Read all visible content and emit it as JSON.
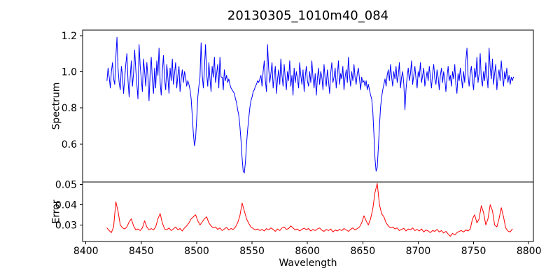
{
  "chart_data": {
    "type": "line",
    "title": "20130305_1010m40_084",
    "xlabel": "Wavelength",
    "grid": false,
    "legend": null,
    "xlim": [
      8397,
      8804
    ],
    "xticks": [
      8400,
      8450,
      8500,
      8550,
      8600,
      8650,
      8700,
      8750,
      8800
    ],
    "subplots": [
      {
        "name": "spectrum",
        "ylabel": "Spectrum",
        "color": "#0000ff",
        "ylim": [
          0.39,
          1.23
        ],
        "yticks": [
          0.6,
          0.8,
          1.0,
          1.2
        ],
        "ytick_labels": [
          "0.6",
          "0.8",
          "1.0",
          "1.2"
        ],
        "x_start": 8419,
        "dx": 1,
        "y": [
          0.95,
          1.02,
          0.97,
          0.91,
          1.0,
          1.05,
          0.96,
          0.93,
          1.08,
          1.19,
          1.02,
          0.94,
          0.9,
          1.03,
          0.98,
          0.88,
          0.96,
          1.04,
          1.1,
          0.95,
          0.86,
          0.97,
          1.06,
          0.92,
          0.99,
          1.12,
          1.01,
          0.93,
          0.85,
          1.15,
          1.03,
          0.96,
          0.89,
          1.07,
          1.0,
          0.92,
          1.05,
          0.97,
          0.84,
          0.99,
          1.08,
          0.95,
          0.88,
          1.02,
          0.91,
          1.06,
          0.98,
          1.13,
          0.94,
          0.87,
          1.0,
          1.09,
          0.96,
          0.9,
          1.04,
          0.97,
          0.88,
          1.02,
          0.95,
          1.07,
          0.93,
          0.99,
          1.05,
          0.91,
          0.98,
          1.03,
          0.89,
          0.96,
          1.01,
          0.94,
          1.0,
          0.97,
          0.92,
          0.95,
          0.93,
          0.9,
          0.85,
          0.76,
          0.66,
          0.59,
          0.63,
          0.74,
          0.86,
          0.92,
          0.97,
          1.16,
          0.98,
          0.91,
          1.02,
          1.15,
          0.99,
          0.92,
          1.05,
          0.96,
          0.89,
          1.03,
          0.97,
          1.08,
          0.94,
          0.99,
          1.04,
          0.91,
          1.08,
          0.97,
          0.97,
          0.9,
          1.01,
          0.95,
          0.98,
          0.94,
          0.96,
          0.93,
          0.91,
          0.9,
          0.89,
          0.88,
          0.85,
          0.83,
          0.79,
          0.76,
          0.7,
          0.62,
          0.52,
          0.45,
          0.44,
          0.5,
          0.6,
          0.68,
          0.74,
          0.8,
          0.84,
          0.86,
          0.89,
          0.9,
          0.92,
          0.93,
          0.95,
          0.94,
          0.96,
          0.98,
          0.92,
          1.0,
          1.06,
          0.95,
          0.89,
          1.15,
          1.02,
          0.94,
          0.99,
          1.05,
          0.91,
          0.97,
          1.03,
          0.88,
          0.96,
          1.01,
          0.93,
          1.07,
          0.98,
          0.92,
          1.04,
          0.96,
          0.9,
          1.0,
          0.95,
          1.06,
          0.92,
          0.98,
          0.87,
          1.02,
          0.94,
          1.0,
          0.96,
          0.91,
          1.05,
          0.98,
          0.93,
          1.01,
          0.89,
          0.97,
          1.03,
          0.95,
          0.92,
          1.0,
          0.94,
          1.06,
          0.97,
          0.91,
          0.99,
          0.87,
          0.96,
          1.02,
          0.93,
          1.0,
          0.97,
          0.9,
          1.04,
          0.96,
          0.92,
          1.01,
          0.95,
          0.88,
          0.99,
          1.05,
          0.94,
          0.97,
          1.02,
          0.91,
          0.98,
          1.06,
          0.93,
          0.99,
          0.96,
          1.03,
          0.9,
          0.97,
          1.01,
          0.94,
          1.08,
          0.98,
          0.92,
          1.0,
          0.95,
          1.04,
          0.97,
          0.93,
          0.99,
          1.02,
          0.96,
          0.9,
          0.97,
          0.94,
          0.95,
          0.92,
          0.95,
          0.9,
          0.93,
          0.9,
          0.87,
          0.85,
          0.78,
          0.66,
          0.52,
          0.45,
          0.47,
          0.58,
          0.7,
          0.8,
          0.86,
          0.9,
          0.93,
          0.96,
          0.92,
          0.98,
          1.01,
          0.95,
          1.04,
          0.97,
          0.92,
          1.0,
          0.96,
          1.03,
          0.94,
          0.98,
          1.05,
          0.91,
          0.97,
          1.0,
          0.93,
          0.79,
          0.9,
          0.97,
          1.02,
          0.95,
          0.99,
          1.06,
          0.93,
          0.98,
          1.03,
          0.96,
          0.91,
          1.0,
          0.97,
          1.05,
          0.94,
          0.98,
          1.02,
          0.92,
          0.96,
          1.0,
          0.95,
          1.03,
          0.97,
          0.91,
          0.99,
          1.04,
          0.96,
          0.93,
          1.01,
          0.97,
          0.9,
          0.98,
          1.02,
          0.94,
          1.0,
          0.96,
          0.89,
          0.97,
          1.03,
          0.95,
          0.98,
          0.92,
          1.0,
          0.96,
          1.04,
          0.93,
          0.88,
          0.99,
          0.95,
          1.02,
          0.97,
          0.91,
          1.0,
          0.94,
          1.06,
          1.13,
          0.98,
          0.92,
          0.99,
          1.03,
          0.95,
          0.9,
          1.02,
          0.97,
          1.08,
          0.94,
          0.99,
          1.1,
          0.96,
          0.92,
          1.0,
          0.95,
          1.05,
          0.98,
          0.91,
          1.13,
          1.02,
          0.96,
          1.07,
          0.93,
          0.99,
          1.04,
          0.9,
          0.97,
          1.01,
          0.95,
          1.06,
          0.98,
          0.92,
          1.0,
          0.96,
          1.02,
          0.94,
          0.98,
          0.93,
          0.97,
          0.95,
          0.97
        ]
      },
      {
        "name": "error",
        "ylabel": "Error",
        "color": "#ff0000",
        "ylim": [
          0.0218,
          0.0512
        ],
        "yticks": [
          0.03,
          0.04,
          0.05
        ],
        "ytick_labels": [
          "0.03",
          "0.04",
          "0.05"
        ],
        "x_start": 8419,
        "dx": 2,
        "y": [
          0.0285,
          0.0272,
          0.0262,
          0.029,
          0.0414,
          0.0368,
          0.03,
          0.0285,
          0.028,
          0.029,
          0.0315,
          0.033,
          0.0295,
          0.0275,
          0.028,
          0.0272,
          0.0285,
          0.032,
          0.029,
          0.0275,
          0.0282,
          0.0275,
          0.029,
          0.033,
          0.0356,
          0.031,
          0.028,
          0.0276,
          0.0285,
          0.0272,
          0.028,
          0.029,
          0.0276,
          0.0282,
          0.027,
          0.0285,
          0.0295,
          0.031,
          0.033,
          0.034,
          0.035,
          0.032,
          0.03,
          0.0315,
          0.033,
          0.034,
          0.031,
          0.0295,
          0.0285,
          0.029,
          0.0278,
          0.0285,
          0.0272,
          0.028,
          0.0288,
          0.0275,
          0.0282,
          0.0278,
          0.029,
          0.031,
          0.0345,
          0.0408,
          0.037,
          0.033,
          0.0308,
          0.029,
          0.0282,
          0.0275,
          0.028,
          0.0272,
          0.0278,
          0.027,
          0.0282,
          0.0275,
          0.0285,
          0.0278,
          0.0268,
          0.028,
          0.0272,
          0.0285,
          0.029,
          0.0278,
          0.0282,
          0.0295,
          0.0285,
          0.0275,
          0.028,
          0.027,
          0.0278,
          0.0284,
          0.0276,
          0.0282,
          0.027,
          0.0278,
          0.0272,
          0.028,
          0.0285,
          0.0274,
          0.0268,
          0.0278,
          0.0272,
          0.028,
          0.0265,
          0.0275,
          0.027,
          0.0278,
          0.0272,
          0.0282,
          0.0275,
          0.0268,
          0.0278,
          0.0285,
          0.0275,
          0.0282,
          0.029,
          0.031,
          0.0345,
          0.032,
          0.03,
          0.033,
          0.038,
          0.046,
          0.0505,
          0.04,
          0.0355,
          0.034,
          0.031,
          0.0295,
          0.0285,
          0.029,
          0.028,
          0.0285,
          0.0272,
          0.0278,
          0.0283,
          0.027,
          0.028,
          0.0275,
          0.0285,
          0.0272,
          0.0278,
          0.027,
          0.028,
          0.0265,
          0.0275,
          0.027,
          0.0262,
          0.0272,
          0.0268,
          0.0278,
          0.0265,
          0.0272,
          0.026,
          0.0268,
          0.0255,
          0.0244,
          0.0258,
          0.025,
          0.0262,
          0.0268,
          0.0272,
          0.0265,
          0.0275,
          0.027,
          0.028,
          0.033,
          0.035,
          0.031,
          0.033,
          0.0395,
          0.036,
          0.03,
          0.033,
          0.04,
          0.037,
          0.03,
          0.029,
          0.033,
          0.0385,
          0.034,
          0.0285,
          0.027,
          0.0265,
          0.028
        ]
      }
    ]
  }
}
